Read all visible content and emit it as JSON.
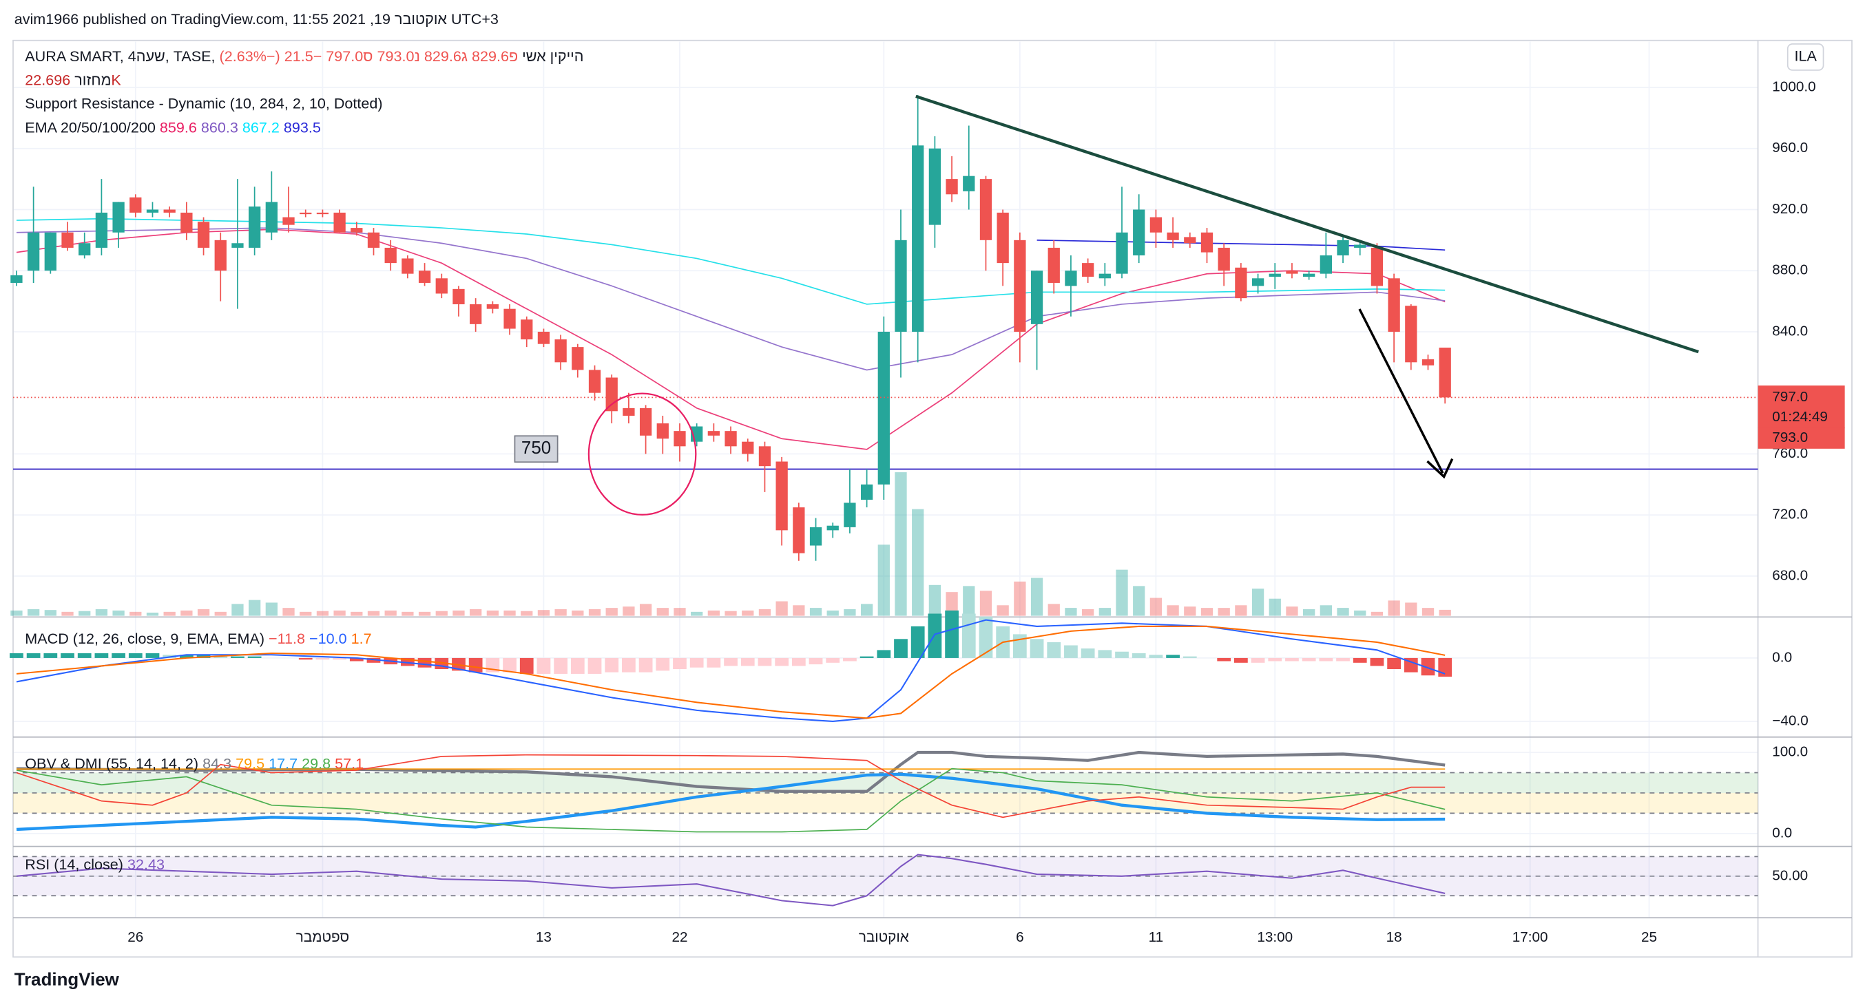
{
  "header": {
    "published": "avim1966 published on TradingView.com, 11:55 2021 ,19 אוקטובר UTC+3",
    "brand": "TradingView",
    "currency": "ILA"
  },
  "x_axis": {
    "xlim": [
      -0.2,
      102.4
    ],
    "xticks": [
      {
        "value": 7,
        "label": "26"
      },
      {
        "value": 18,
        "label": "ספטמבר"
      },
      {
        "value": 31,
        "label": "13"
      },
      {
        "value": 39,
        "label": "22"
      },
      {
        "value": 51,
        "label": "אוקטובר"
      },
      {
        "value": 59,
        "label": "6"
      },
      {
        "value": 67,
        "label": "11"
      },
      {
        "value": 74,
        "label": "13:00"
      },
      {
        "value": 81,
        "label": "18"
      },
      {
        "value": 89,
        "label": "17:00"
      },
      {
        "value": 96,
        "label": "25"
      }
    ]
  },
  "chart_data": [
    {
      "type": "candlestick",
      "title": "AURA SMART, 4שעה, TASE, הייקין אשי",
      "ohlc_prefixes": [
        "פ",
        "ג",
        "נ",
        "ס"
      ],
      "last_labels": {
        "open": "829.6",
        "high": "829.6",
        "low": "793.0",
        "close": "797.0"
      },
      "change": "−21.5 (−2.63%)",
      "volume_title": "מחזור",
      "volume_label": "22.696K",
      "indicator": "Support Resistance - Dynamic (10, 284, 2, 10, Dotted)",
      "ema_title": "EMA 20/50/100/200",
      "countdown": "01:24:49",
      "open": [
        872,
        880,
        880,
        905,
        890,
        895,
        905,
        928,
        918,
        920,
        918,
        912,
        900,
        895,
        895,
        905,
        915,
        918,
        918,
        918,
        908,
        905,
        895,
        888,
        880,
        875,
        868,
        858,
        858,
        855,
        848,
        840,
        835,
        830,
        815,
        810,
        790,
        790,
        780,
        775,
        768,
        775,
        775,
        768,
        765,
        755,
        725,
        700,
        710,
        712,
        730,
        740,
        840,
        840,
        910,
        940,
        932,
        940,
        918,
        900,
        845,
        895,
        870,
        885,
        875,
        878,
        890,
        915,
        905,
        902,
        905,
        895,
        882,
        870,
        876,
        880,
        876,
        878,
        890,
        895,
        895,
        875,
        857,
        822,
        829.6
      ],
      "high": [
        880,
        935,
        905,
        912,
        905,
        940,
        925,
        930,
        925,
        922,
        925,
        915,
        905,
        940,
        935,
        945,
        935,
        920,
        920,
        920,
        912,
        908,
        900,
        890,
        885,
        878,
        870,
        862,
        860,
        858,
        850,
        842,
        838,
        832,
        818,
        812,
        800,
        792,
        785,
        780,
        780,
        780,
        778,
        770,
        768,
        758,
        728,
        718,
        715,
        750,
        750,
        850,
        920,
        995,
        968,
        955,
        975,
        942,
        920,
        905,
        880,
        900,
        890,
        888,
        885,
        935,
        930,
        920,
        915,
        905,
        908,
        898,
        885,
        878,
        885,
        885,
        880,
        905,
        902,
        900,
        898,
        878,
        858,
        825,
        829.6
      ],
      "low": [
        870,
        872,
        878,
        893,
        888,
        890,
        895,
        915,
        915,
        915,
        900,
        890,
        860,
        855,
        890,
        900,
        905,
        915,
        915,
        905,
        903,
        890,
        880,
        875,
        870,
        862,
        850,
        840,
        852,
        838,
        830,
        830,
        815,
        810,
        795,
        780,
        780,
        760,
        760,
        755,
        765,
        768,
        760,
        755,
        735,
        700,
        690,
        690,
        705,
        708,
        725,
        730,
        810,
        820,
        895,
        925,
        920,
        880,
        870,
        820,
        815,
        865,
        850,
        872,
        870,
        875,
        885,
        895,
        895,
        895,
        885,
        870,
        860,
        865,
        868,
        875,
        874,
        875,
        885,
        890,
        865,
        820,
        815,
        815,
        793.0
      ],
      "close": [
        877,
        905,
        905,
        895,
        898,
        918,
        925,
        918,
        920,
        918,
        905,
        895,
        880,
        898,
        922,
        925,
        910,
        917,
        917,
        905,
        905,
        895,
        885,
        878,
        872,
        865,
        858,
        845,
        855,
        842,
        835,
        832,
        820,
        815,
        800,
        788,
        785,
        772,
        770,
        765,
        778,
        772,
        765,
        760,
        752,
        710,
        695,
        712,
        713,
        728,
        740,
        840,
        900,
        962,
        960,
        930,
        942,
        900,
        885,
        840,
        880,
        872,
        880,
        876,
        878,
        905,
        920,
        905,
        900,
        898,
        892,
        880,
        862,
        875,
        878,
        878,
        878,
        890,
        900,
        897,
        870,
        840,
        820,
        818,
        797.0
      ],
      "volume": [
        20000,
        25000,
        22000,
        15000,
        18000,
        25000,
        20000,
        15000,
        12000,
        15000,
        20000,
        25000,
        15000,
        45000,
        60000,
        50000,
        30000,
        15000,
        18000,
        20000,
        15000,
        18000,
        20000,
        15000,
        15000,
        18000,
        20000,
        25000,
        20000,
        20000,
        18000,
        22000,
        25000,
        20000,
        25000,
        30000,
        35000,
        45000,
        30000,
        30000,
        15000,
        20000,
        18000,
        20000,
        25000,
        55000,
        40000,
        30000,
        20000,
        25000,
        45000,
        270000,
        545000,
        405000,
        117000,
        90000,
        113000,
        95000,
        40000,
        130000,
        144000,
        45000,
        30000,
        25000,
        30000,
        175000,
        113000,
        68000,
        40000,
        35000,
        30000,
        30000,
        40000,
        103000,
        65000,
        35000,
        25000,
        40000,
        30000,
        20000,
        15000,
        58000,
        50000,
        30000,
        22696
      ],
      "volume_ylim": [
        0,
        2180000
      ],
      "up_color": "#26a69a",
      "down_color": "#ef5350",
      "volume_colors": [
        "#26a69a66",
        "#ef535066"
      ],
      "ylim": [
        654,
        1030
      ],
      "yticks": [
        {
          "value": 1000,
          "label": "1000.0"
        },
        {
          "value": 960,
          "label": "960.0"
        },
        {
          "value": 920,
          "label": "920.0"
        },
        {
          "value": 880,
          "label": "880.0"
        },
        {
          "value": 840,
          "label": "840.0"
        },
        {
          "value": 760,
          "label": "760.0"
        },
        {
          "value": 720,
          "label": "720.0"
        },
        {
          "value": 680,
          "label": "680.0"
        }
      ],
      "grid": true,
      "support_level": 750,
      "support_color": "#5b4fcf",
      "series": [
        {
          "color": "#ec407a",
          "x": [
            0,
            5,
            10,
            15,
            20,
            25,
            30,
            35,
            40,
            45,
            50,
            55,
            60,
            65,
            70,
            75,
            80,
            84
          ],
          "values": [
            892,
            900,
            905,
            907,
            904,
            885,
            855,
            825,
            790,
            770,
            763,
            800,
            845,
            865,
            878,
            880,
            878,
            859.6
          ]
        },
        {
          "color": "#9575cd",
          "x": [
            0,
            5,
            10,
            15,
            20,
            25,
            30,
            35,
            40,
            45,
            50,
            55,
            60,
            65,
            70,
            75,
            80,
            84
          ],
          "values": [
            905,
            906,
            907,
            908,
            905,
            898,
            888,
            870,
            850,
            830,
            815,
            825,
            850,
            858,
            862,
            864,
            866,
            860.3
          ]
        },
        {
          "color": "#26e0e9",
          "x": [
            0,
            5,
            10,
            15,
            20,
            25,
            30,
            35,
            40,
            45,
            50,
            55,
            60,
            65,
            70,
            75,
            80,
            84
          ],
          "values": [
            913,
            914,
            913,
            912,
            911,
            908,
            904,
            897,
            888,
            875,
            858,
            862,
            866,
            866,
            866,
            867,
            868,
            867.2
          ]
        },
        {
          "color": "#2a2ad8",
          "x": [
            60,
            65,
            70,
            75,
            80,
            84
          ],
          "values": [
            900,
            899,
            898,
            897,
            896,
            893.5
          ]
        }
      ]
    },
    {
      "type": "macd",
      "title": "MACD (12, 26, close, 9, EMA, EMA)",
      "legend_values": [
        "−11.8",
        "−10.0",
        "1.7"
      ],
      "ylim": [
        -48.4,
        24.4
      ],
      "yticks": [
        {
          "value": 0,
          "label": "0.0"
        },
        {
          "value": -40,
          "label": "−40.0"
        }
      ],
      "grid": true,
      "histogram": [
        3,
        3,
        3,
        3,
        3,
        3,
        3,
        3,
        3,
        2,
        2,
        2,
        1,
        1,
        1,
        0,
        0,
        -1,
        -1,
        -1,
        -2,
        -3,
        -4,
        -5,
        -6,
        -7,
        -8,
        -9,
        -9,
        -9,
        -10,
        -10,
        -10,
        -10,
        -10,
        -9,
        -9,
        -9,
        -8,
        -7,
        -6,
        -6,
        -5,
        -5,
        -5,
        -5,
        -5,
        -4,
        -3,
        -2,
        1,
        5,
        12,
        20,
        28,
        30,
        28,
        26,
        20,
        15,
        12,
        10,
        8,
        6,
        5,
        4,
        3,
        2,
        2,
        1,
        0,
        -2,
        -3,
        -3,
        -2,
        -2,
        -2,
        -2,
        -2,
        -3,
        -5,
        -7,
        -9,
        -11,
        -11.8
      ],
      "histogram_colors": [
        "#26a69a",
        "#b2dfdb",
        "#ffcdd2",
        "#ef5350"
      ],
      "series": [
        {
          "color": "#2962ff",
          "x": [
            0,
            5,
            10,
            15,
            20,
            25,
            30,
            35,
            40,
            45,
            48,
            50,
            52,
            54,
            57,
            60,
            65,
            70,
            75,
            80,
            84
          ],
          "values": [
            -15,
            -5,
            2,
            2,
            0,
            -5,
            -15,
            -25,
            -33,
            -38,
            -40,
            -38,
            -20,
            15,
            24,
            20,
            22,
            20,
            12,
            5,
            -10.0
          ]
        },
        {
          "color": "#ff6d00",
          "x": [
            0,
            5,
            10,
            15,
            20,
            25,
            30,
            35,
            40,
            45,
            50,
            52,
            55,
            58,
            62,
            66,
            70,
            75,
            80,
            84
          ],
          "values": [
            -10,
            -5,
            0,
            3,
            2,
            -3,
            -10,
            -20,
            -28,
            -34,
            -38,
            -35,
            -10,
            10,
            17,
            20,
            20,
            15,
            10,
            1.7
          ]
        }
      ]
    },
    {
      "type": "line",
      "title": "OBV & DMI (55, 14, 14, 2)",
      "ylim": [
        -13,
        116
      ],
      "yticks": [
        {
          "value": 100,
          "label": "100.0"
        },
        {
          "value": 0,
          "label": "0.0"
        }
      ],
      "grid": true,
      "levels": [
        75,
        50,
        25
      ],
      "band_colors": [
        "#4caf5026",
        "#ffc10726"
      ],
      "series": [
        {
          "color": "#787b86",
          "width": 2.5,
          "x": [
            0,
            10,
            20,
            30,
            35,
            40,
            45,
            50,
            52,
            53,
            55,
            57,
            60,
            63,
            66,
            70,
            75,
            78,
            80,
            84
          ],
          "values": [
            80,
            78,
            79,
            76,
            70,
            58,
            52,
            52,
            85,
            100,
            100,
            95,
            93,
            90,
            100,
            95,
            97,
            98,
            95,
            84.3
          ]
        },
        {
          "color": "#ff9800",
          "width": 1,
          "level": 79.5
        },
        {
          "color": "#2196f3",
          "width": 2.5,
          "x": [
            0,
            10,
            15,
            20,
            25,
            27,
            30,
            35,
            40,
            45,
            50,
            52,
            55,
            60,
            65,
            70,
            75,
            80,
            84
          ],
          "values": [
            5,
            15,
            20,
            18,
            10,
            8,
            15,
            28,
            45,
            58,
            72,
            73,
            68,
            55,
            35,
            25,
            20,
            17,
            17.7
          ]
        },
        {
          "color": "#4caf50",
          "width": 1,
          "x": [
            0,
            5,
            10,
            15,
            20,
            25,
            30,
            40,
            45,
            50,
            52,
            55,
            58,
            60,
            65,
            70,
            75,
            80,
            84
          ],
          "values": [
            78,
            60,
            70,
            35,
            30,
            18,
            8,
            2,
            2,
            5,
            40,
            80,
            75,
            65,
            60,
            45,
            40,
            50,
            29.8
          ]
        },
        {
          "color": "#f44336",
          "width": 1,
          "x": [
            0,
            5,
            8,
            10,
            12,
            15,
            20,
            25,
            30,
            40,
            45,
            50,
            52,
            55,
            58,
            60,
            63,
            66,
            70,
            75,
            78,
            80,
            82,
            84
          ],
          "values": [
            75,
            40,
            35,
            50,
            85,
            75,
            78,
            95,
            97,
            96,
            95,
            90,
            65,
            35,
            20,
            28,
            40,
            45,
            35,
            32,
            30,
            45,
            57,
            57.1
          ]
        }
      ]
    },
    {
      "type": "line",
      "title": "RSI (14, close)",
      "ylim": [
        10,
        77.9
      ],
      "yticks": [
        {
          "value": 50,
          "label": "50.00"
        }
      ],
      "grid": true,
      "levels": [
        70,
        50,
        30
      ],
      "band_colors": [
        "#7e57c21a",
        "#7e57c21a"
      ],
      "series": [
        {
          "color": "#7e57c2",
          "width": 1.2,
          "x": [
            0,
            5,
            10,
            15,
            20,
            25,
            30,
            35,
            40,
            45,
            48,
            50,
            52,
            53,
            55,
            57,
            60,
            65,
            70,
            75,
            78,
            80,
            84
          ],
          "values": [
            50,
            58,
            55,
            52,
            55,
            47,
            45,
            38,
            42,
            25,
            20,
            30,
            60,
            72,
            68,
            62,
            52,
            50,
            55,
            48,
            56,
            48,
            32.43
          ]
        }
      ]
    }
  ]
}
